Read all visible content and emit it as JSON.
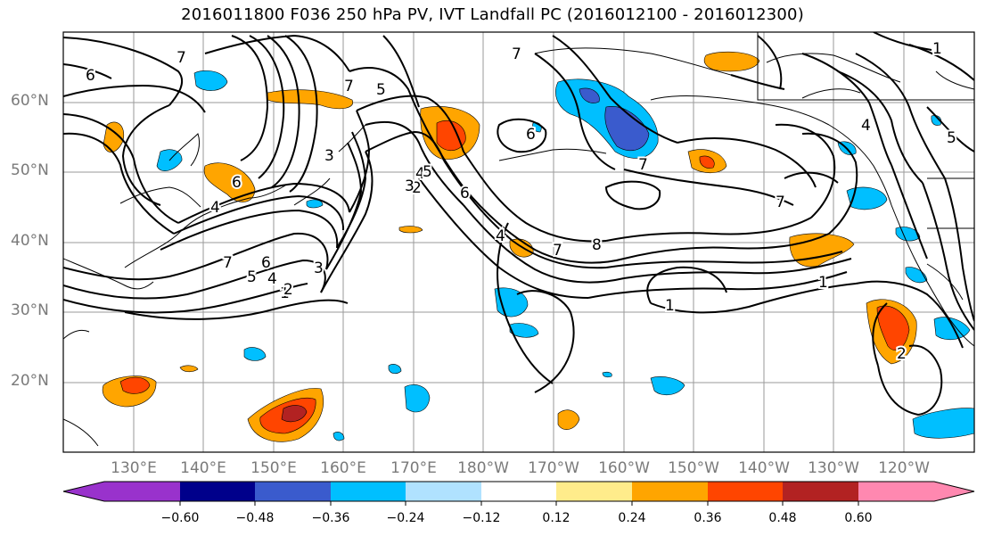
{
  "title": "2016011800 F036 250 hPa PV, IVT Landfall PC (2016012100 - 2016012300)",
  "lat_labels": [
    "60°N",
    "50°N",
    "40°N",
    "30°N",
    "20°N"
  ],
  "lon_labels": [
    "130°E",
    "140°E",
    "150°E",
    "160°E",
    "170°E",
    "180°W",
    "170°W",
    "160°W",
    "150°W",
    "140°W",
    "130°W",
    "120°W"
  ],
  "colorbar": {
    "colors": [
      "#9932cc",
      "#00008b",
      "#3a5bcd",
      "#00bfff",
      "#b0e2ff",
      "#ffffff",
      "#ffec8b",
      "#ffa500",
      "#ff4500",
      "#b22222",
      "#ff88b0"
    ],
    "tick_labels": [
      "−0.60",
      "−0.48",
      "−0.36",
      "−0.24",
      "−0.12",
      "0.12",
      "0.24",
      "0.36",
      "0.48",
      "0.60"
    ]
  },
  "contour_labels": [
    "6",
    "7",
    "6",
    "7",
    "5",
    "4",
    "3",
    "6",
    "1",
    "6",
    "7",
    "4",
    "5",
    "7",
    "2",
    "3",
    "4",
    "5",
    "6",
    "7",
    "5",
    "4",
    "3",
    "2",
    "1",
    "4",
    "7",
    "8",
    "1",
    "7",
    "1",
    "2"
  ]
}
